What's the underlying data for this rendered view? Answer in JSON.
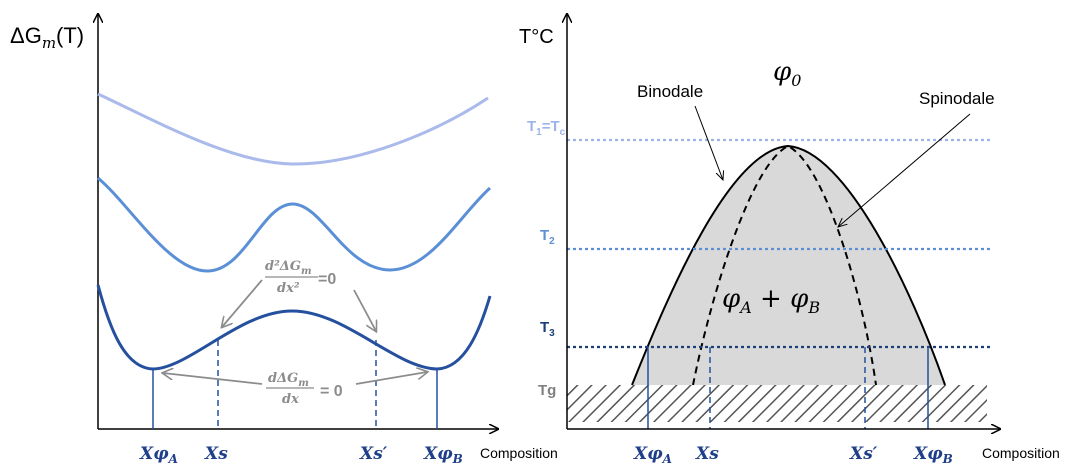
{
  "left_panel": {
    "y_axis_label": "ΔG",
    "y_axis_label_sub": "m",
    "y_axis_label_suffix": "(T)",
    "x_axis_label": "Composition",
    "annotation_second_derivative": {
      "numerator": "d²ΔG",
      "numerator_sub": "m",
      "denominator": "dx²",
      "equals": "=0"
    },
    "annotation_first_derivative": {
      "numerator": "dΔG",
      "numerator_sub": "m",
      "denominator": "dx",
      "equals": "= 0"
    },
    "x_ticks": [
      {
        "main": "Xφ",
        "sub": "A"
      },
      {
        "main": "Xs",
        "sub": ""
      },
      {
        "main": "Xs′",
        "sub": ""
      },
      {
        "main": "Xφ",
        "sub": "B"
      }
    ]
  },
  "right_panel": {
    "y_axis_label": "T°C",
    "x_axis_label": "Composition",
    "phi0_label": "φ",
    "phi0_sub": "0",
    "binodale_label": "Binodale",
    "spinodale_label": "Spinodale",
    "two_phase_label": {
      "a": "φ",
      "a_sub": "A",
      "plus": " + ",
      "b": "φ",
      "b_sub": "B"
    },
    "temperatures": [
      {
        "label": "T",
        "sub": "1",
        "rest": "=T",
        "rest_sub": "c",
        "color": "#9db4ea"
      },
      {
        "label": "T",
        "sub": "2",
        "rest": "",
        "rest_sub": "",
        "color": "#5b8fd6"
      },
      {
        "label": "T",
        "sub": "3",
        "rest": "",
        "rest_sub": "",
        "color": "#1c3f7a"
      },
      {
        "label": "Tg",
        "sub": "",
        "rest": "",
        "rest_sub": "",
        "color": "#808080"
      }
    ],
    "x_ticks": [
      {
        "main": "Xφ",
        "sub": "A"
      },
      {
        "main": "Xs",
        "sub": ""
      },
      {
        "main": "Xs′",
        "sub": ""
      },
      {
        "main": "Xφ",
        "sub": "B"
      }
    ]
  },
  "colors": {
    "curve_light": "#a9baeb",
    "curve_mid": "#5b8fd6",
    "curve_dark": "#24509e",
    "tick_label": "#1f3f8a",
    "annotation": "#8c8c8c",
    "phase_fill": "#d9d9d9"
  }
}
